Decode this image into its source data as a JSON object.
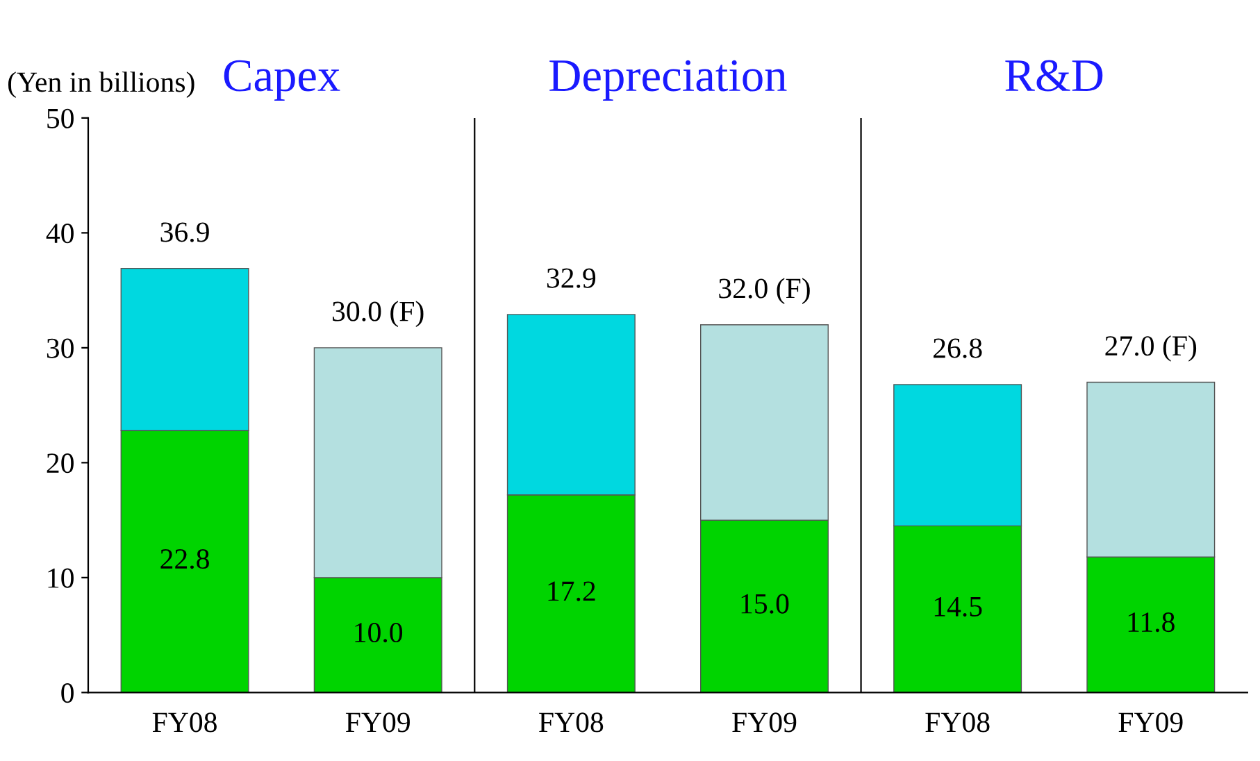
{
  "chart_data": {
    "type": "bar",
    "stacked": true,
    "ylabel": "(Yen in billions)",
    "annotations": [
      "Capex",
      "Depreciation",
      "R&D"
    ],
    "categories": [
      "FY08",
      "FY09",
      "FY08",
      "FY09",
      "FY08",
      "FY09"
    ],
    "series": [
      {
        "color": "#00d400",
        "values": [
          22.8,
          10.0,
          17.2,
          15.0,
          14.5,
          11.8
        ],
        "value_labels": [
          "22.8",
          "10.0",
          "17.2",
          "15.0",
          "14.5",
          "11.8"
        ]
      },
      {
        "colors": [
          "#00d8e0",
          "#b4e0e0",
          "#00d8e0",
          "#b4e0e0",
          "#00d8e0",
          "#b4e0e0"
        ],
        "values": [
          14.1,
          20.0,
          15.7,
          17.0,
          12.3,
          15.2
        ]
      }
    ],
    "totals": [
      "36.9",
      "30.0 (F)",
      "32.9",
      "32.0 (F)",
      "26.8",
      "27.0 (F)"
    ],
    "ylim": [
      0,
      50
    ],
    "yticks": [
      0,
      10,
      20,
      30,
      40,
      50
    ],
    "grid": false,
    "legend": false
  }
}
